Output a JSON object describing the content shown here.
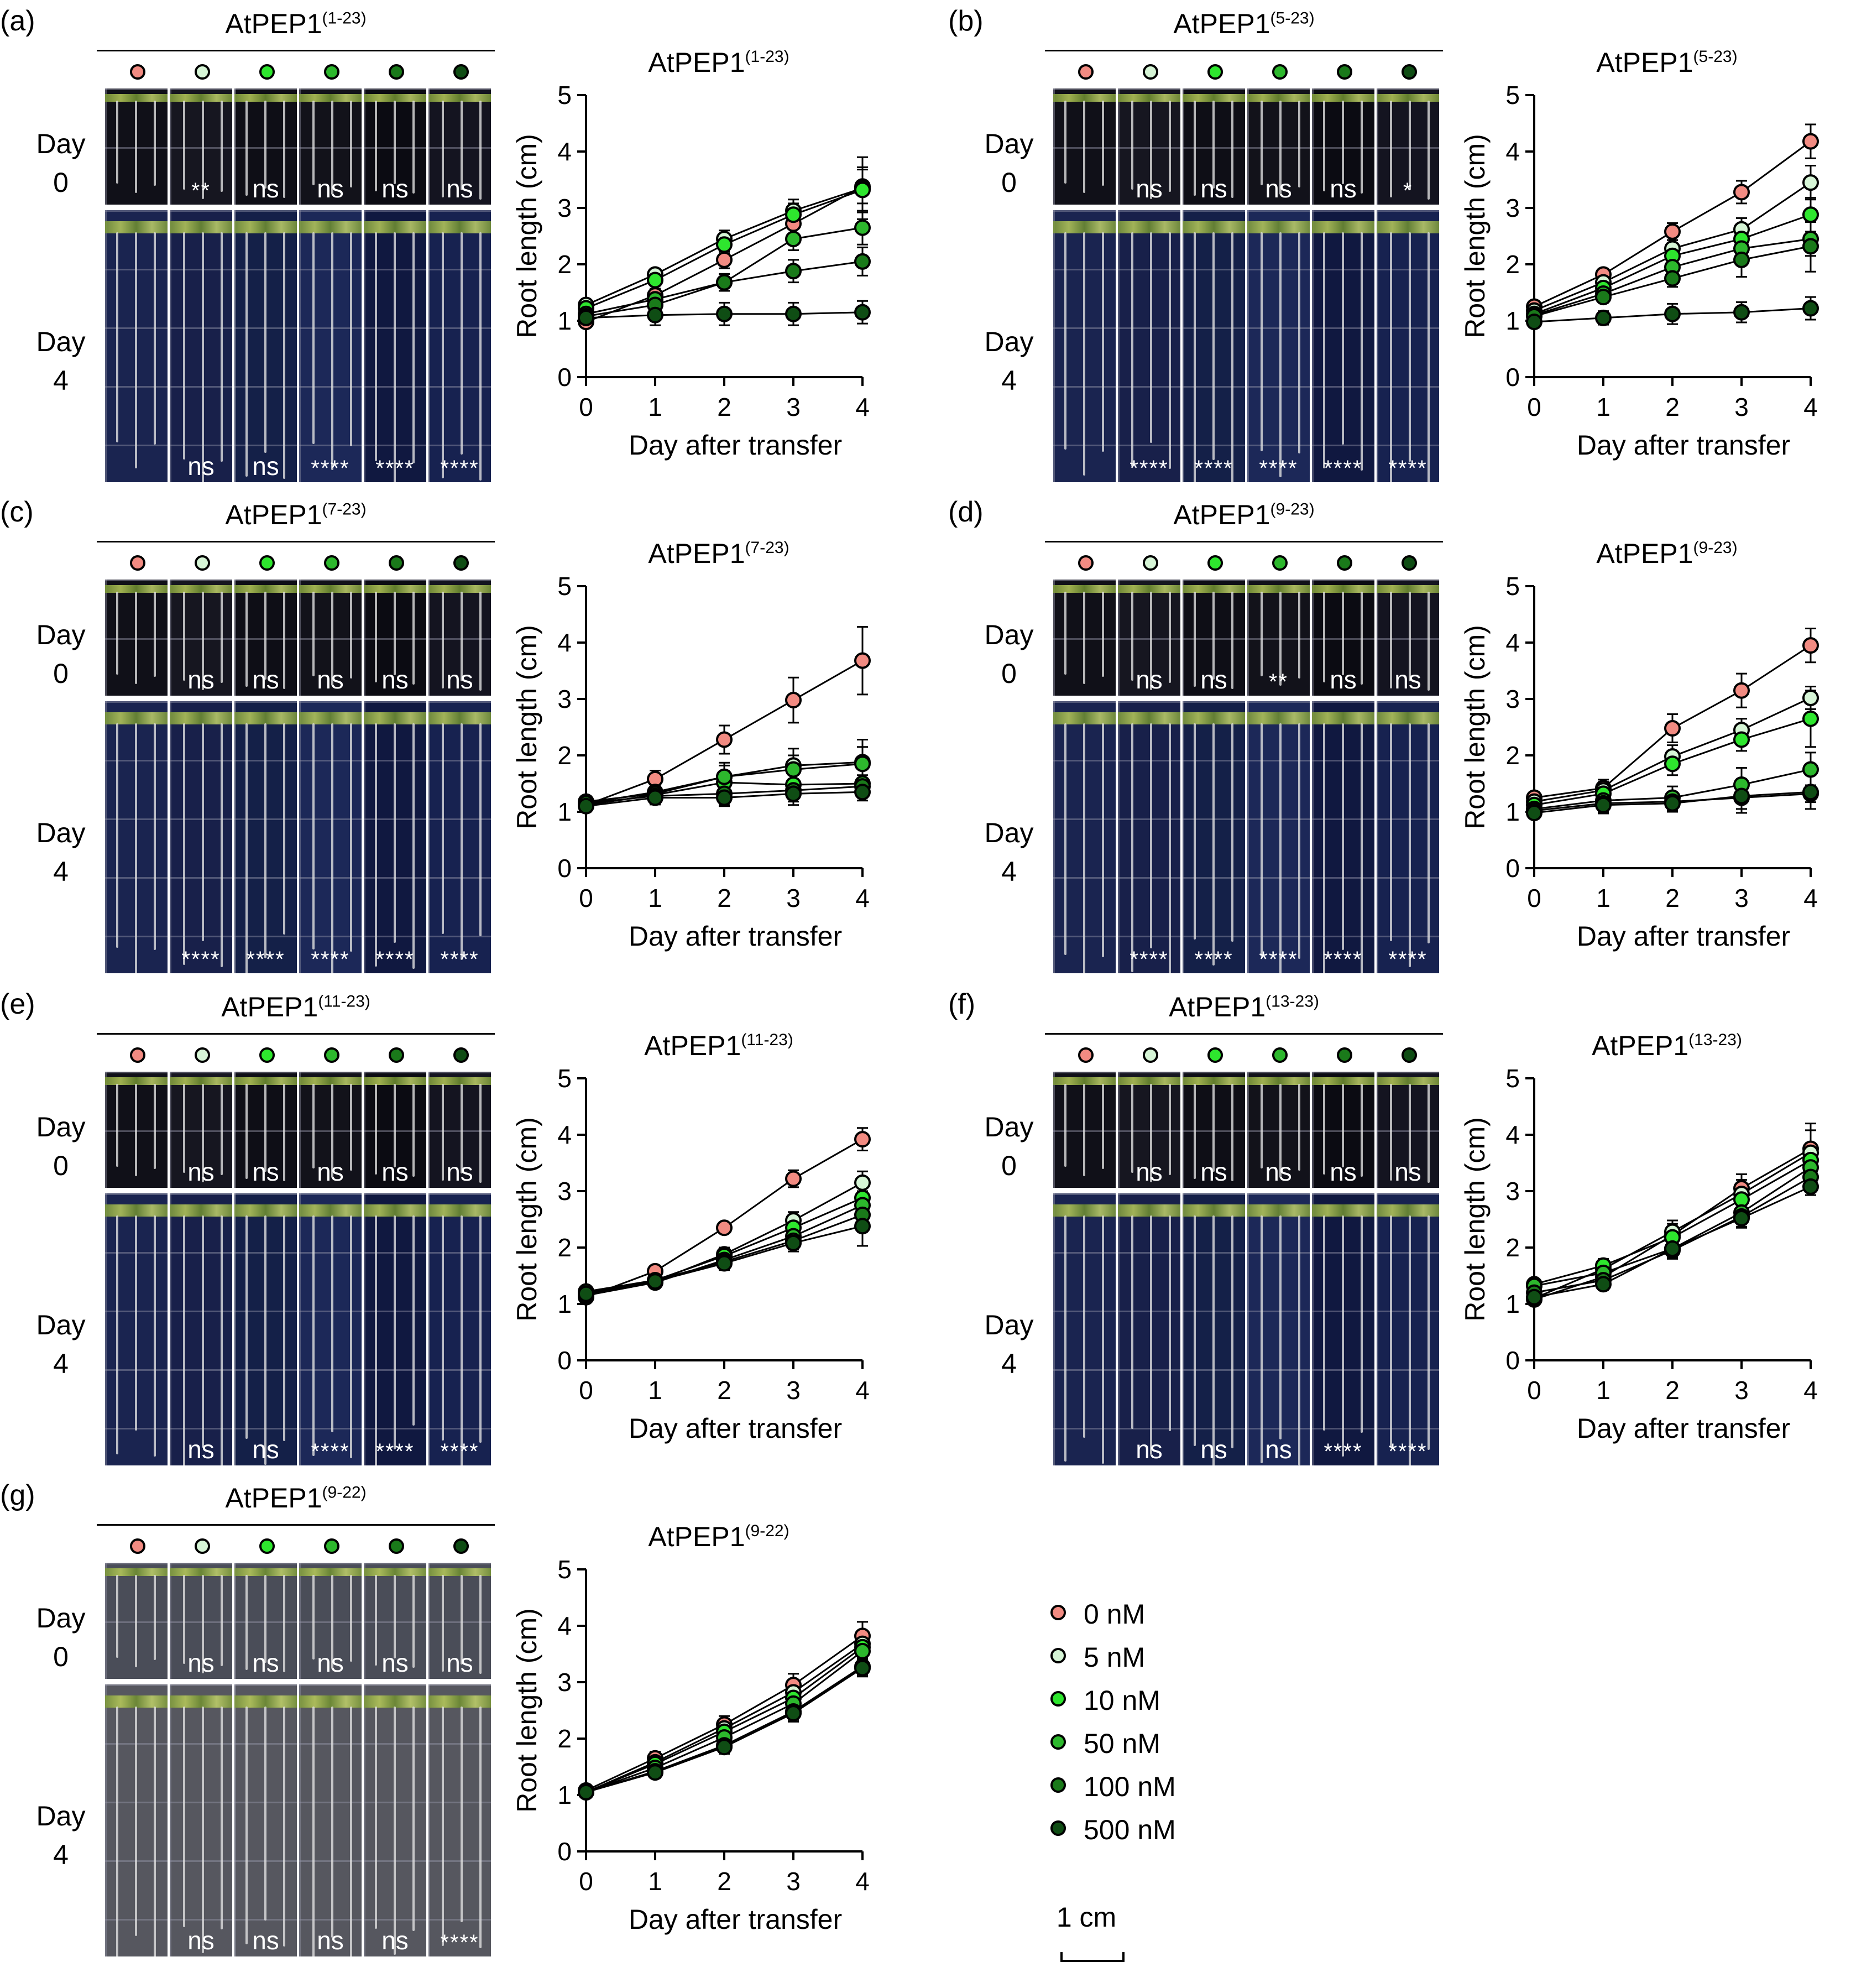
{
  "figure": {
    "conc_colors": [
      "#f28b82",
      "#d6f5d6",
      "#2ee62e",
      "#2db82d",
      "#1a7a1a",
      "#0f4d14"
    ],
    "legend": [
      "0 nM",
      "5 nM",
      "10 nM",
      "50 nM",
      "100 nM",
      "500 nM"
    ],
    "scalebar_label": "1 cm",
    "day_labels": {
      "day0": [
        "Day",
        "0"
      ],
      "day4": [
        "Day",
        "4"
      ]
    }
  },
  "panels": [
    {
      "letter": "(a)",
      "title": "AtPEP1",
      "sup": "(1-23)",
      "day0_sig": [
        "",
        "**",
        "ns",
        "ns",
        "ns",
        "ns"
      ],
      "day4_sig": [
        "",
        "ns",
        "ns",
        "****",
        "****",
        "****"
      ]
    },
    {
      "letter": "(b)",
      "title": "AtPEP1",
      "sup": "(5-23)",
      "day0_sig": [
        "",
        "ns",
        "ns",
        "ns",
        "ns",
        "*"
      ],
      "day4_sig": [
        "",
        "****",
        "****",
        "****",
        "****",
        "****"
      ]
    },
    {
      "letter": "(c)",
      "title": "AtPEP1",
      "sup": "(7-23)",
      "day0_sig": [
        "",
        "ns",
        "ns",
        "ns",
        "ns",
        "ns"
      ],
      "day4_sig": [
        "",
        "****",
        "****",
        "****",
        "****",
        "****"
      ]
    },
    {
      "letter": "(d)",
      "title": "AtPEP1",
      "sup": "(9-23)",
      "day0_sig": [
        "",
        "ns",
        "ns",
        "**",
        "ns",
        "ns"
      ],
      "day4_sig": [
        "",
        "****",
        "****",
        "****",
        "****",
        "****"
      ]
    },
    {
      "letter": "(e)",
      "title": "AtPEP1",
      "sup": "(11-23)",
      "day0_sig": [
        "",
        "ns",
        "ns",
        "ns",
        "ns",
        "ns"
      ],
      "day4_sig": [
        "",
        "ns",
        "ns",
        "****",
        "****",
        "****"
      ]
    },
    {
      "letter": "(f)",
      "title": "AtPEP1",
      "sup": "(13-23)",
      "day0_sig": [
        "",
        "ns",
        "ns",
        "ns",
        "ns",
        "ns"
      ],
      "day4_sig": [
        "",
        "ns",
        "ns",
        "ns",
        "****",
        "****"
      ]
    },
    {
      "letter": "(g)",
      "title": "AtPEP1",
      "sup": "(9-22)",
      "day0_sig": [
        "",
        "ns",
        "ns",
        "ns",
        "ns",
        "ns"
      ],
      "day4_sig": [
        "",
        "ns",
        "ns",
        "ns",
        "ns",
        "****"
      ]
    }
  ],
  "chart_data": [
    {
      "type": "line",
      "title": "AtPEP1(1-23)",
      "xlabel": "Day after transfer",
      "ylabel": "Root length (cm)",
      "x": [
        0,
        1,
        2,
        3,
        4
      ],
      "xlim": [
        0,
        4
      ],
      "ylim": [
        0,
        5
      ],
      "yticks": [
        0,
        1,
        2,
        3,
        4,
        5
      ],
      "series": [
        {
          "name": "0 nM",
          "values": [
            0.98,
            1.45,
            2.08,
            2.72,
            3.38
          ],
          "err": [
            0.08,
            0.12,
            0.15,
            0.2,
            0.3
          ]
        },
        {
          "name": "5 nM",
          "values": [
            1.28,
            1.82,
            2.45,
            2.95,
            3.35
          ],
          "err": [
            0.08,
            0.1,
            0.15,
            0.2,
            0.55
          ]
        },
        {
          "name": "10 nM",
          "values": [
            1.22,
            1.72,
            2.35,
            2.88,
            3.32
          ],
          "err": [
            0.08,
            0.1,
            0.15,
            0.2,
            0.4
          ]
        },
        {
          "name": "50 nM",
          "values": [
            1.12,
            1.38,
            1.68,
            2.45,
            2.65
          ],
          "err": [
            0.08,
            0.12,
            0.15,
            0.2,
            0.3
          ]
        },
        {
          "name": "100 nM",
          "values": [
            1.08,
            1.28,
            1.68,
            1.88,
            2.05
          ],
          "err": [
            0.08,
            0.12,
            0.15,
            0.2,
            0.25
          ]
        },
        {
          "name": "500 nM",
          "values": [
            1.05,
            1.1,
            1.12,
            1.12,
            1.15
          ],
          "err": [
            0.08,
            0.18,
            0.2,
            0.2,
            0.2
          ]
        }
      ]
    },
    {
      "type": "line",
      "title": "AtPEP1(5-23)",
      "xlabel": "Day after transfer",
      "ylabel": "Root length (cm)",
      "x": [
        0,
        1,
        2,
        3,
        4
      ],
      "xlim": [
        0,
        4
      ],
      "ylim": [
        0,
        5
      ],
      "yticks": [
        0,
        1,
        2,
        3,
        4,
        5
      ],
      "series": [
        {
          "name": "0 nM",
          "values": [
            1.25,
            1.82,
            2.58,
            3.28,
            4.18
          ],
          "err": [
            0.1,
            0.1,
            0.15,
            0.2,
            0.3
          ]
        },
        {
          "name": "5 nM",
          "values": [
            1.18,
            1.68,
            2.28,
            2.62,
            3.45
          ],
          "err": [
            0.1,
            0.1,
            0.15,
            0.2,
            0.3
          ]
        },
        {
          "name": "10 nM",
          "values": [
            1.12,
            1.58,
            2.15,
            2.45,
            2.88
          ],
          "err": [
            0.1,
            0.1,
            0.15,
            0.2,
            0.3
          ]
        },
        {
          "name": "50 nM",
          "values": [
            1.1,
            1.48,
            1.95,
            2.28,
            2.45
          ],
          "err": [
            0.1,
            0.1,
            0.15,
            0.2,
            0.3
          ]
        },
        {
          "name": "100 nM",
          "values": [
            1.08,
            1.42,
            1.75,
            2.08,
            2.32
          ],
          "err": [
            0.1,
            0.1,
            0.15,
            0.3,
            0.45
          ]
        },
        {
          "name": "500 nM",
          "values": [
            0.98,
            1.05,
            1.12,
            1.15,
            1.22
          ],
          "err": [
            0.1,
            0.12,
            0.18,
            0.18,
            0.2
          ]
        }
      ]
    },
    {
      "type": "line",
      "title": "AtPEP1(7-23)",
      "xlabel": "Day after transfer",
      "ylabel": "Root length (cm)",
      "x": [
        0,
        1,
        2,
        3,
        4
      ],
      "xlim": [
        0,
        4
      ],
      "ylim": [
        0,
        5
      ],
      "yticks": [
        0,
        1,
        2,
        3,
        4,
        5
      ],
      "series": [
        {
          "name": "0 nM",
          "values": [
            1.12,
            1.58,
            2.28,
            2.98,
            3.68
          ],
          "err": [
            0.1,
            0.15,
            0.25,
            0.4,
            0.6
          ]
        },
        {
          "name": "5 nM",
          "values": [
            1.15,
            1.35,
            1.62,
            1.82,
            1.88
          ],
          "err": [
            0.1,
            0.15,
            0.25,
            0.3,
            0.4
          ]
        },
        {
          "name": "10 nM",
          "values": [
            1.12,
            1.3,
            1.52,
            1.48,
            1.5
          ],
          "err": [
            0.1,
            0.15,
            0.2,
            0.2,
            0.3
          ]
        },
        {
          "name": "50 nM",
          "values": [
            1.18,
            1.32,
            1.62,
            1.75,
            1.85
          ],
          "err": [
            0.1,
            0.15,
            0.2,
            0.25,
            0.3
          ]
        },
        {
          "name": "100 nM",
          "values": [
            1.15,
            1.28,
            1.32,
            1.38,
            1.45
          ],
          "err": [
            0.1,
            0.15,
            0.2,
            0.2,
            0.2
          ]
        },
        {
          "name": "500 nM",
          "values": [
            1.1,
            1.25,
            1.25,
            1.32,
            1.35
          ],
          "err": [
            0.1,
            0.12,
            0.15,
            0.2,
            0.15
          ]
        }
      ]
    },
    {
      "type": "line",
      "title": "AtPEP1(9-23)",
      "xlabel": "Day after transfer",
      "ylabel": "Root length (cm)",
      "x": [
        0,
        1,
        2,
        3,
        4
      ],
      "xlim": [
        0,
        4
      ],
      "ylim": [
        0,
        5
      ],
      "yticks": [
        0,
        1,
        2,
        3,
        4,
        5
      ],
      "series": [
        {
          "name": "0 nM",
          "values": [
            1.25,
            1.42,
            2.48,
            3.15,
            3.95
          ],
          "err": [
            0.1,
            0.15,
            0.25,
            0.3,
            0.3
          ]
        },
        {
          "name": "5 nM",
          "values": [
            1.18,
            1.38,
            1.98,
            2.45,
            3.02
          ],
          "err": [
            0.1,
            0.15,
            0.2,
            0.2,
            0.2
          ]
        },
        {
          "name": "10 nM",
          "values": [
            1.12,
            1.32,
            1.85,
            2.28,
            2.65
          ],
          "err": [
            0.1,
            0.15,
            0.2,
            0.2,
            0.5
          ]
        },
        {
          "name": "50 nM",
          "values": [
            1.05,
            1.2,
            1.25,
            1.48,
            1.75
          ],
          "err": [
            0.1,
            0.15,
            0.2,
            0.3,
            0.3
          ]
        },
        {
          "name": "100 nM",
          "values": [
            1.02,
            1.15,
            1.18,
            1.25,
            1.32
          ],
          "err": [
            0.1,
            0.15,
            0.15,
            0.2,
            0.15
          ]
        },
        {
          "name": "500 nM",
          "values": [
            0.98,
            1.12,
            1.15,
            1.28,
            1.35
          ],
          "err": [
            0.1,
            0.15,
            0.15,
            0.3,
            0.3
          ]
        }
      ]
    },
    {
      "type": "line",
      "title": "AtPEP1(11-23)",
      "xlabel": "Day after transfer",
      "ylabel": "Root length (cm)",
      "x": [
        0,
        1,
        2,
        3,
        4
      ],
      "xlim": [
        0,
        4
      ],
      "ylim": [
        0,
        5
      ],
      "yticks": [
        0,
        1,
        2,
        3,
        4,
        5
      ],
      "series": [
        {
          "name": "0 nM",
          "values": [
            1.12,
            1.58,
            2.35,
            3.22,
            3.92
          ],
          "err": [
            0.08,
            0.08,
            0.08,
            0.15,
            0.2
          ]
        },
        {
          "name": "5 nM",
          "values": [
            1.2,
            1.4,
            1.88,
            2.48,
            3.15
          ],
          "err": [
            0.08,
            0.08,
            0.12,
            0.15,
            0.2
          ]
        },
        {
          "name": "10 nM",
          "values": [
            1.18,
            1.42,
            1.85,
            2.35,
            2.88
          ],
          "err": [
            0.08,
            0.08,
            0.12,
            0.15,
            0.2
          ]
        },
        {
          "name": "50 nM",
          "values": [
            1.15,
            1.38,
            1.78,
            2.2,
            2.75
          ],
          "err": [
            0.08,
            0.08,
            0.12,
            0.15,
            0.25
          ]
        },
        {
          "name": "100 nM",
          "values": [
            1.22,
            1.42,
            1.75,
            2.12,
            2.58
          ],
          "err": [
            0.08,
            0.08,
            0.12,
            0.15,
            0.3
          ]
        },
        {
          "name": "500 nM",
          "values": [
            1.18,
            1.4,
            1.72,
            2.08,
            2.38
          ],
          "err": [
            0.08,
            0.08,
            0.12,
            0.15,
            0.35
          ]
        }
      ]
    },
    {
      "type": "line",
      "title": "AtPEP1(13-23)",
      "xlabel": "Day after transfer",
      "ylabel": "Root length (cm)",
      "x": [
        0,
        1,
        2,
        3,
        4
      ],
      "xlim": [
        0,
        4
      ],
      "ylim": [
        0,
        5
      ],
      "yticks": [
        0,
        1,
        2,
        3,
        4,
        5
      ],
      "series": [
        {
          "name": "0 nM",
          "values": [
            1.08,
            1.48,
            2.22,
            3.05,
            3.75
          ],
          "err": [
            0.08,
            0.12,
            0.2,
            0.25,
            0.45
          ]
        },
        {
          "name": "5 nM",
          "values": [
            1.1,
            1.62,
            2.28,
            2.95,
            3.68
          ],
          "err": [
            0.08,
            0.12,
            0.2,
            0.25,
            0.4
          ]
        },
        {
          "name": "10 nM",
          "values": [
            1.35,
            1.68,
            2.18,
            2.85,
            3.55
          ],
          "err": [
            0.08,
            0.12,
            0.2,
            0.2,
            0.3
          ]
        },
        {
          "name": "50 nM",
          "values": [
            1.32,
            1.55,
            1.98,
            2.62,
            3.42
          ],
          "err": [
            0.08,
            0.12,
            0.15,
            0.2,
            0.25
          ]
        },
        {
          "name": "100 nM",
          "values": [
            1.2,
            1.42,
            1.95,
            2.55,
            3.25
          ],
          "err": [
            0.08,
            0.12,
            0.15,
            0.2,
            0.2
          ]
        },
        {
          "name": "500 nM",
          "values": [
            1.12,
            1.35,
            1.98,
            2.52,
            3.08
          ],
          "err": [
            0.08,
            0.1,
            0.15,
            0.15,
            0.15
          ]
        }
      ]
    },
    {
      "type": "line",
      "title": "AtPEP1(9-22)",
      "xlabel": "Day after transfer",
      "ylabel": "Root length (cm)",
      "x": [
        0,
        1,
        2,
        3,
        4
      ],
      "xlim": [
        0,
        4
      ],
      "ylim": [
        0,
        5
      ],
      "yticks": [
        0,
        1,
        2,
        3,
        4,
        5
      ],
      "series": [
        {
          "name": "0 nM",
          "values": [
            1.08,
            1.65,
            2.25,
            2.95,
            3.82
          ],
          "err": [
            0.08,
            0.12,
            0.15,
            0.2,
            0.25
          ]
        },
        {
          "name": "5 nM",
          "values": [
            1.05,
            1.58,
            2.18,
            2.82,
            3.68
          ],
          "err": [
            0.08,
            0.12,
            0.15,
            0.2,
            0.2
          ]
        },
        {
          "name": "10 nM",
          "values": [
            1.05,
            1.55,
            2.12,
            2.72,
            3.62
          ],
          "err": [
            0.08,
            0.12,
            0.15,
            0.2,
            0.2
          ]
        },
        {
          "name": "50 nM",
          "values": [
            1.05,
            1.48,
            2.02,
            2.62,
            3.55
          ],
          "err": [
            0.08,
            0.1,
            0.15,
            0.2,
            0.2
          ]
        },
        {
          "name": "100 nM",
          "values": [
            1.05,
            1.42,
            1.88,
            2.48,
            3.28
          ],
          "err": [
            0.08,
            0.1,
            0.12,
            0.15,
            0.15
          ]
        },
        {
          "name": "500 nM",
          "values": [
            1.05,
            1.4,
            1.85,
            2.45,
            3.25
          ],
          "err": [
            0.08,
            0.1,
            0.12,
            0.15,
            0.15
          ]
        }
      ]
    }
  ]
}
